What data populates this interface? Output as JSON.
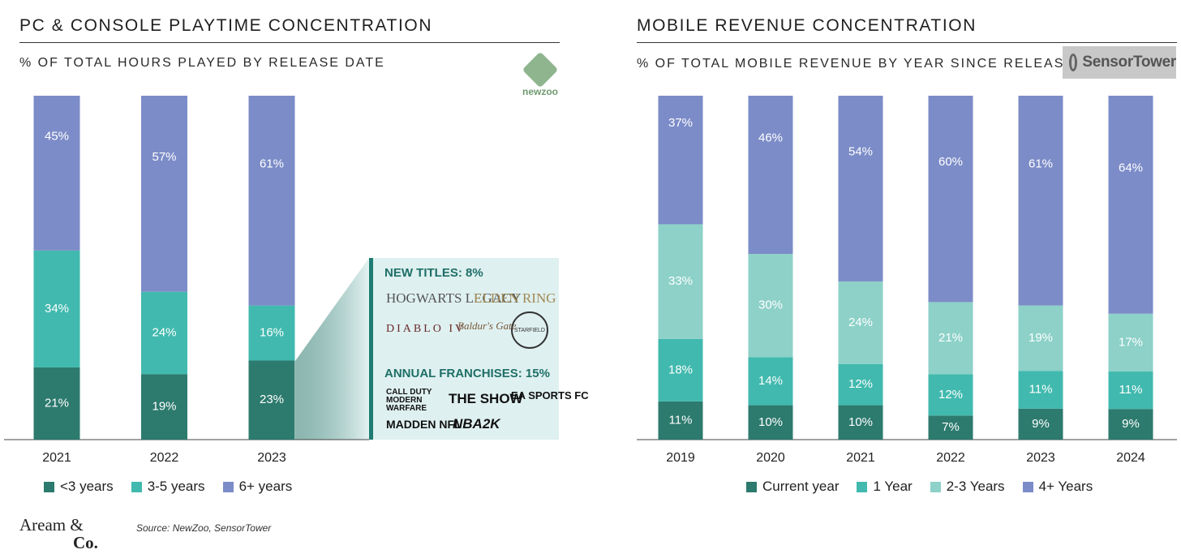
{
  "left": {
    "title": "PC & CONSOLE PLAYTIME CONCENTRATION",
    "subtitle": "% OF TOTAL HOURS PLAYED BY RELEASE DATE",
    "logo": "newzoo"
  },
  "right": {
    "title": "MOBILE REVENUE CONCENTRATION",
    "subtitle": "% OF TOTAL MOBILE REVENUE BY YEAR SINCE RELEASE",
    "logo": "SensorTower"
  },
  "callout": {
    "new_titles_heading": "NEW TITLES: 8%",
    "new_titles_logos": [
      "HOGWARTS LEGACY",
      "ELDEN RING",
      "DIABLO IV",
      "Baldur's Gate",
      "STARFIELD"
    ],
    "franchises_heading": "ANNUAL FRANCHISES: 15%",
    "franchise_logos": [
      "CALL DUTY MODERN WARFARE",
      "THE SHOW",
      "EA SPORTS FC",
      "MADDEN NFL",
      "NBA2K"
    ]
  },
  "colors": {
    "dark": "#2d7a6e",
    "mid": "#41b9ae",
    "light": "#8dd1c8",
    "purple": "#7c8cc8"
  },
  "chart_data": [
    {
      "type": "bar",
      "stacked": true,
      "title": "PC & CONSOLE PLAYTIME CONCENTRATION",
      "categories": [
        "2021",
        "2022",
        "2023"
      ],
      "series": [
        {
          "name": "<3 years",
          "values": [
            21,
            19,
            23
          ],
          "labels": [
            "21%",
            "19%",
            "23%"
          ],
          "color": "#2d7a6e"
        },
        {
          "name": "3-5 years",
          "values": [
            34,
            24,
            16
          ],
          "labels": [
            "34%",
            "24%",
            "16%"
          ],
          "color": "#41b9ae"
        },
        {
          "name": "6+ years",
          "values": [
            45,
            57,
            61
          ],
          "labels": [
            "45%",
            "57%",
            "61%"
          ],
          "color": "#7c8cc8"
        }
      ],
      "ylim": [
        0,
        100
      ],
      "legend": "bottom"
    },
    {
      "type": "bar",
      "stacked": true,
      "title": "MOBILE REVENUE CONCENTRATION",
      "categories": [
        "2019",
        "2020",
        "2021",
        "2022",
        "2023",
        "2024"
      ],
      "series": [
        {
          "name": "Current year",
          "values": [
            11,
            10,
            10,
            7,
            9,
            9
          ],
          "labels": [
            "11%",
            "10%",
            "10%",
            "7%",
            "9%",
            "9%"
          ],
          "color": "#2d7a6e"
        },
        {
          "name": "1 Year",
          "values": [
            18,
            14,
            12,
            12,
            11,
            11
          ],
          "labels": [
            "18%",
            "14%",
            "12%",
            "12%",
            "11%",
            "11%"
          ],
          "color": "#41b9ae"
        },
        {
          "name": "2-3 Years",
          "values": [
            33,
            30,
            24,
            21,
            19,
            17
          ],
          "labels": [
            "33%",
            "30%",
            "24%",
            "21%",
            "19%",
            "17%"
          ],
          "color": "#8dd1c8"
        },
        {
          "name": "4+ Years",
          "values": [
            37,
            46,
            54,
            60,
            61,
            64
          ],
          "labels": [
            "37%",
            "46%",
            "54%",
            "60%",
            "61%",
            "64%"
          ],
          "color": "#7c8cc8"
        }
      ],
      "ylim": [
        0,
        100
      ],
      "legend": "bottom"
    }
  ],
  "footer": {
    "brand_line1": "Aream &",
    "brand_line2": "Co.",
    "source": "Source: NewZoo, SensorTower"
  }
}
